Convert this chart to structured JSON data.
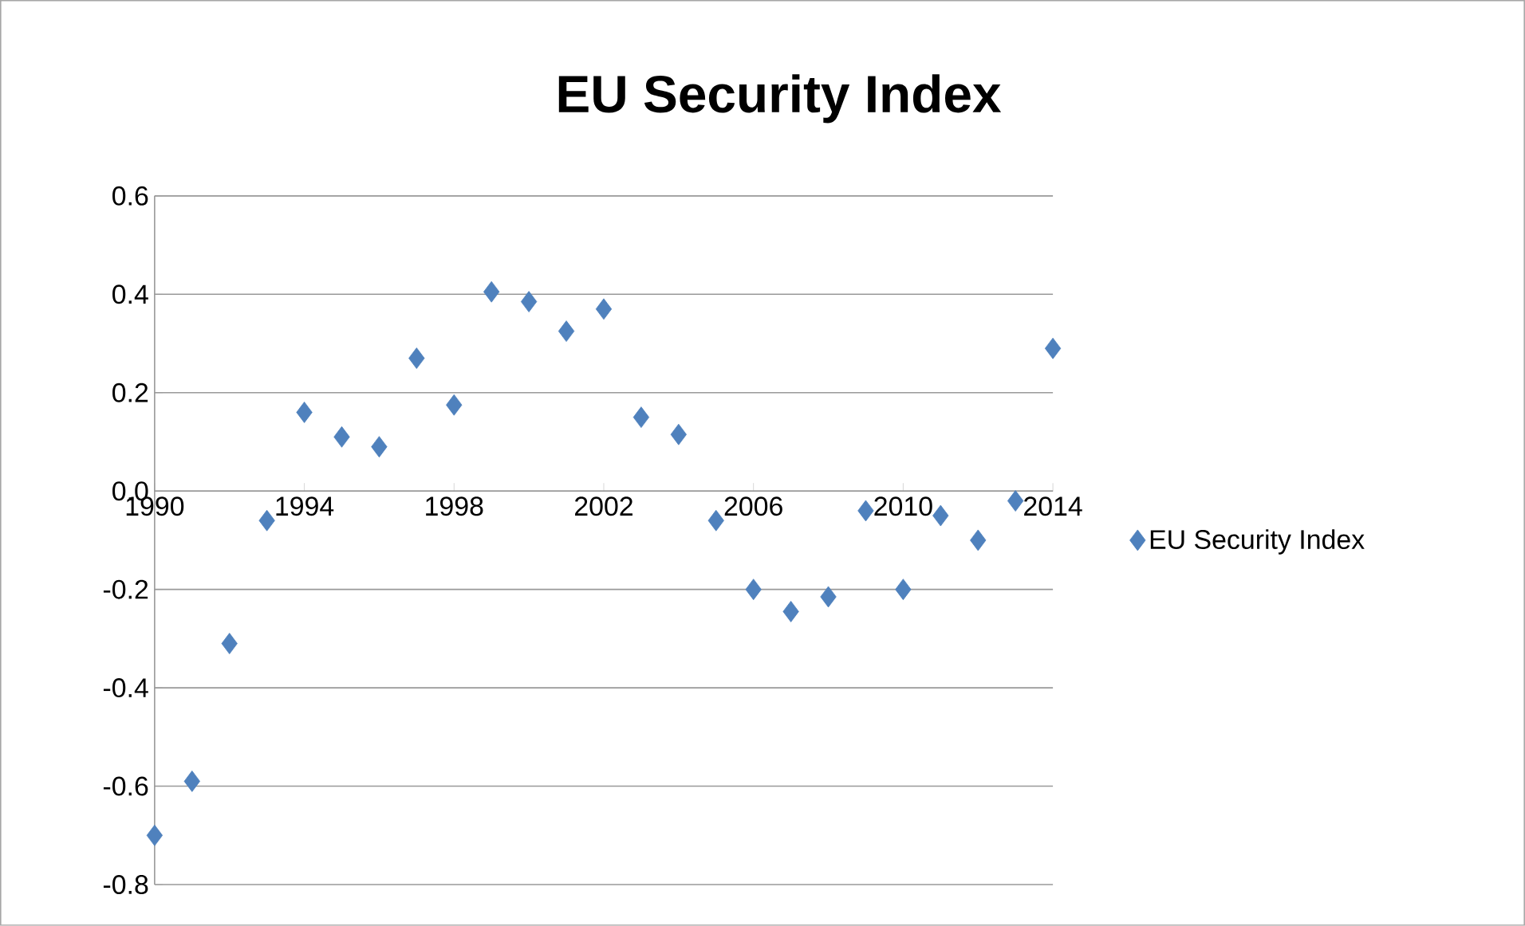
{
  "chart_data": {
    "type": "scatter",
    "title": "EU Security Index",
    "x": [
      1990,
      1991,
      1992,
      1993,
      1994,
      1995,
      1996,
      1997,
      1998,
      1999,
      2000,
      2001,
      2002,
      2003,
      2004,
      2005,
      2006,
      2007,
      2008,
      2009,
      2010,
      2011,
      2012,
      2013,
      2014
    ],
    "series": [
      {
        "name": "EU Security Index",
        "color": "#4f81bd",
        "values": [
          -0.7,
          -0.59,
          -0.31,
          -0.06,
          0.16,
          0.11,
          0.09,
          0.27,
          0.175,
          0.405,
          0.385,
          0.325,
          0.37,
          0.15,
          0.115,
          -0.06,
          -0.2,
          -0.245,
          -0.215,
          -0.04,
          -0.2,
          -0.05,
          -0.1,
          -0.02,
          0.29
        ]
      }
    ],
    "xlim": [
      1990,
      2014
    ],
    "xticks": [
      1990,
      1994,
      1998,
      2002,
      2006,
      2010,
      2014
    ],
    "ylim": [
      -0.8,
      0.6
    ],
    "yticks": [
      {
        "value": -0.8,
        "label": "-0.8"
      },
      {
        "value": -0.6,
        "label": "-0.6"
      },
      {
        "value": -0.4,
        "label": "-0.4"
      },
      {
        "value": -0.2,
        "label": "-0.2"
      },
      {
        "value": 0,
        "label": "0.0"
      },
      {
        "value": 0.2,
        "label": "0.2"
      },
      {
        "value": 0.4,
        "label": "0.4"
      },
      {
        "value": 0.6,
        "label": "0.6"
      }
    ],
    "grid": "y",
    "legend": "right",
    "marker": "diamond"
  }
}
